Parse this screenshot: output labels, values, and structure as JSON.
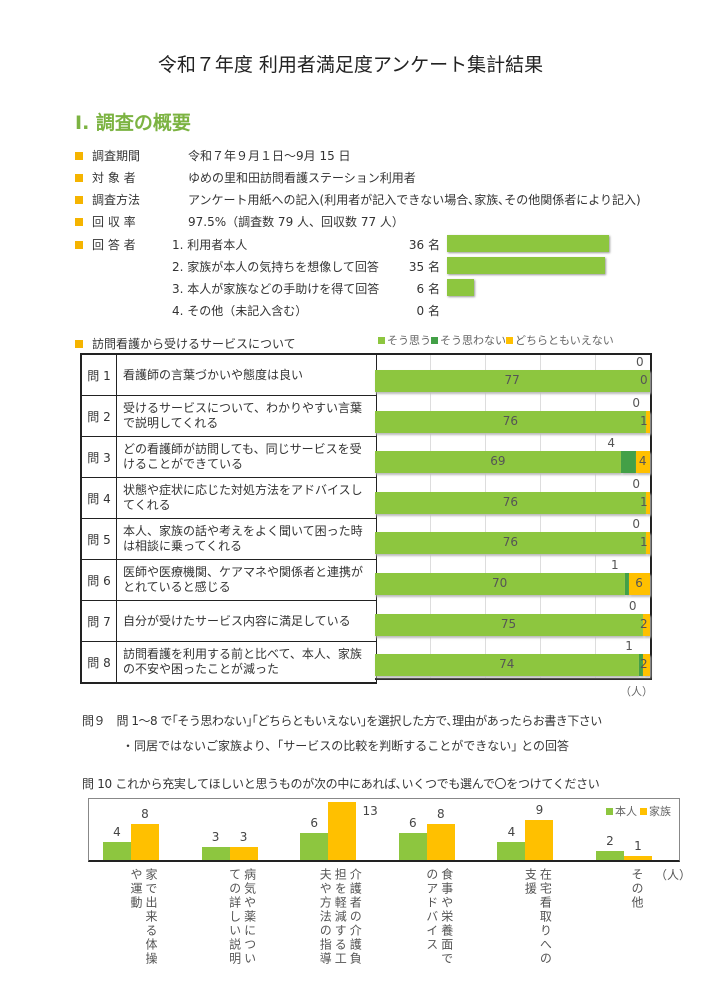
{
  "title": "令和７年度 利用者満足度アンケート集計結果",
  "section_heading": "Ⅰ. 調査の概要",
  "overview": [
    {
      "label": "調査期間",
      "value": "令和７年９月１日～9月 15 日"
    },
    {
      "label": "対 象 者",
      "value": "ゆめの里和田訪問看護ステーション利用者"
    },
    {
      "label": "調査方法",
      "value": "アンケート用紙への記入(利用者が記入できない場合､家族､その他関係者により記入)"
    },
    {
      "label": "回 収 率",
      "value": "97.5%（調査数 79 人、回収数 77 人）"
    }
  ],
  "respondents": {
    "label": "回 答 者",
    "items": [
      {
        "text": "1. 利用者本人",
        "count": "36 名",
        "value": 36
      },
      {
        "text": "2. 家族が本人の気持ちを想像して回答",
        "count": "35 名",
        "value": 35
      },
      {
        "text": "3. 本人が家族などの手助けを得て回答",
        "count": "6 名",
        "value": 6
      },
      {
        "text": "4. その他（未記入含む）",
        "count": "0 名",
        "value": 0
      }
    ]
  },
  "colors": {
    "green": "#8dc63f",
    "dark_green": "#43a047",
    "orange": "#ffc000",
    "bullet": "#f5b400",
    "heading": "#7cb342"
  },
  "service_heading": "訪問看護から受けるサービスについて",
  "chart_data": [
    {
      "type": "bar",
      "orientation": "horizontal",
      "stacked": true,
      "legend": [
        "そう思う",
        "そう思わない",
        "どちらともいえない"
      ],
      "legend_position": "top-right",
      "unit": "（人）",
      "categories": [
        "問 1",
        "問 2",
        "問 3",
        "問 4",
        "問 5",
        "問 6",
        "問 7",
        "問 8"
      ],
      "questions": [
        "看護師の言葉づかいや態度は良い",
        "受けるサービスについて、わかりやすい言葉で説明してくれる",
        "どの看護師が訪問しても、同じサービスを受けることができている",
        "状態や症状に応じた対処方法をアドバイスしてくれる",
        "本人、家族の話や考えをよく聞いて困った時は相談に乗ってくれる",
        "医師や医療機関、ケアマネや関係者と連携がとれていると感じる",
        "自分が受けたサービス内容に満足している",
        "訪問看護を利用する前と比べて、本人、家族の不安や困ったことが減った"
      ],
      "series": [
        {
          "name": "そう思う",
          "values": [
            77,
            76,
            69,
            76,
            76,
            70,
            75,
            74
          ]
        },
        {
          "name": "そう思わない",
          "values": [
            0,
            0,
            4,
            0,
            0,
            1,
            0,
            1
          ]
        },
        {
          "name": "どちらともいえない",
          "values": [
            0,
            1,
            4,
            1,
            1,
            6,
            2,
            2
          ]
        }
      ],
      "xlim": [
        0,
        77
      ]
    },
    {
      "type": "bar",
      "legend": [
        "本人",
        "家族"
      ],
      "legend_position": "top-right",
      "unit": "（人）",
      "categories": [
        "家で出来る体操\nや運動",
        "病気や薬につい\nての詳しい説明",
        "介護者の介護負\n担を軽減する工\n夫や方法の指導",
        "食事や栄養面で\nのアドバイス",
        "在宅看取りへの\n支援",
        "その他"
      ],
      "series": [
        {
          "name": "本人",
          "values": [
            4,
            3,
            6,
            6,
            4,
            2
          ]
        },
        {
          "name": "家族",
          "values": [
            8,
            3,
            13,
            8,
            9,
            1
          ]
        }
      ],
      "ylim": [
        0,
        14
      ]
    }
  ],
  "q9": {
    "label": "問９",
    "text": "問 1～8 で｢そう思わない｣｢どちらともいえない｣を選択した方で､理由があったらお書き下さい",
    "answer": "・同居ではないご家族より、｢サービスの比較を判断することができない｣ との回答"
  },
  "q10": {
    "label": "問 10",
    "text": "これから充実してほしいと思うものが次の中にあれば､いくつでも選んで〇をつけてください"
  }
}
